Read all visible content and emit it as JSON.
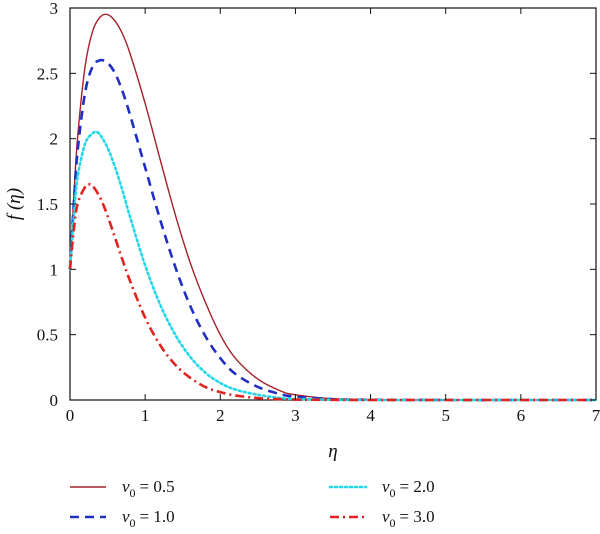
{
  "chart_data": {
    "type": "line",
    "xlabel": "η",
    "ylabel": "f (η)",
    "xlim": [
      0,
      7
    ],
    "ylim": [
      0,
      3
    ],
    "xticks": [
      "0",
      "1",
      "2",
      "3",
      "4",
      "5",
      "6",
      "7"
    ],
    "yticks": [
      "0",
      "0.5",
      "1",
      "1.5",
      "2",
      "2.5",
      "3"
    ],
    "grid": false,
    "legend_position": "bottom",
    "series": [
      {
        "name": "ν0 = 0.5",
        "symbol": "ν",
        "subscript": "0",
        "value_text": "= 0.5",
        "color": "#a3202b",
        "style": "solid",
        "x": [
          0,
          0.05,
          0.1,
          0.2,
          0.3,
          0.4,
          0.5,
          0.6,
          0.7,
          0.8,
          1.0,
          1.2,
          1.4,
          1.6,
          1.8,
          2.0,
          2.2,
          2.5,
          2.8,
          3.0,
          3.5,
          4.0,
          5.0,
          6.0,
          7.0
        ],
        "y": [
          1.0,
          1.55,
          2.0,
          2.55,
          2.82,
          2.93,
          2.95,
          2.9,
          2.8,
          2.65,
          2.27,
          1.84,
          1.42,
          1.05,
          0.75,
          0.5,
          0.32,
          0.16,
          0.07,
          0.04,
          0.01,
          0.003,
          0,
          0,
          0
        ]
      },
      {
        "name": "ν0 = 1.0",
        "symbol": "ν",
        "subscript": "0",
        "value_text": "= 1.0",
        "color": "#1f2fc4",
        "style": "dashed",
        "x": [
          0,
          0.05,
          0.1,
          0.2,
          0.3,
          0.4,
          0.5,
          0.6,
          0.7,
          0.8,
          1.0,
          1.2,
          1.4,
          1.6,
          1.8,
          2.0,
          2.2,
          2.5,
          2.8,
          3.0,
          3.5,
          4.0,
          5.0,
          6.0,
          7.0
        ],
        "y": [
          1.0,
          1.5,
          1.9,
          2.35,
          2.55,
          2.6,
          2.58,
          2.5,
          2.36,
          2.18,
          1.78,
          1.38,
          1.02,
          0.72,
          0.49,
          0.32,
          0.2,
          0.1,
          0.045,
          0.025,
          0.006,
          0.002,
          0,
          0,
          0
        ]
      },
      {
        "name": "ν0 = 2.0",
        "symbol": "ν",
        "subscript": "0",
        "value_text": "= 2.0",
        "color": "#22d7e8",
        "style": "dotted",
        "x": [
          0,
          0.05,
          0.1,
          0.2,
          0.3,
          0.35,
          0.4,
          0.5,
          0.6,
          0.7,
          0.8,
          1.0,
          1.2,
          1.4,
          1.6,
          1.8,
          2.0,
          2.2,
          2.5,
          2.8,
          3.0,
          3.5,
          4.0,
          5.0,
          6.0,
          7.0
        ],
        "y": [
          1.0,
          1.4,
          1.7,
          1.96,
          2.04,
          2.05,
          2.03,
          1.93,
          1.78,
          1.6,
          1.4,
          1.03,
          0.73,
          0.5,
          0.33,
          0.21,
          0.13,
          0.08,
          0.04,
          0.015,
          0.008,
          0.002,
          0,
          0,
          0,
          0
        ]
      },
      {
        "name": "ν0 = 3.0",
        "symbol": "ν",
        "subscript": "0",
        "value_text": "= 3.0",
        "color": "#e0231f",
        "style": "dashdot",
        "x": [
          0,
          0.05,
          0.1,
          0.2,
          0.25,
          0.3,
          0.4,
          0.5,
          0.6,
          0.7,
          0.8,
          1.0,
          1.2,
          1.4,
          1.6,
          1.8,
          2.0,
          2.2,
          2.5,
          2.8,
          3.0,
          3.5,
          4.0,
          5.0,
          6.0,
          7.0
        ],
        "y": [
          1.0,
          1.3,
          1.5,
          1.63,
          1.65,
          1.64,
          1.55,
          1.41,
          1.24,
          1.07,
          0.91,
          0.63,
          0.42,
          0.27,
          0.17,
          0.1,
          0.06,
          0.035,
          0.015,
          0.006,
          0.003,
          0.001,
          0,
          0,
          0,
          0
        ]
      }
    ]
  }
}
